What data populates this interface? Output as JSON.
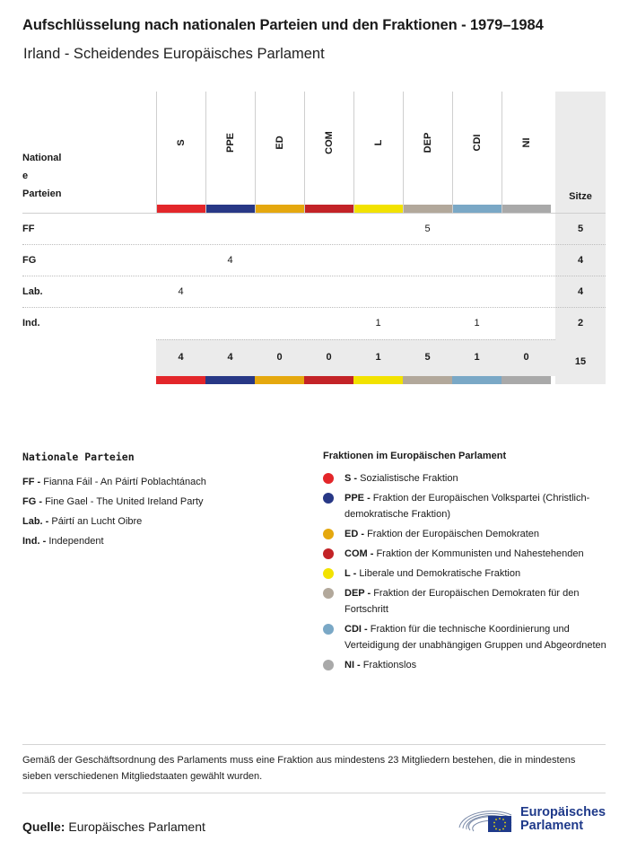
{
  "title": "Aufschlüsselung nach nationalen Parteien und den Fraktionen - 1979–1984",
  "subtitle": "Irland - Scheidendes Europäisches Parlament",
  "table": {
    "row_header_lines": [
      "National",
      "e",
      "Parteien"
    ],
    "seats_header": "Sitze",
    "groups": [
      {
        "code": "S",
        "color": "#e3262a"
      },
      {
        "code": "PPE",
        "color": "#283886"
      },
      {
        "code": "ED",
        "color": "#e5a80e"
      },
      {
        "code": "COM",
        "color": "#c32327"
      },
      {
        "code": "L",
        "color": "#f2e200"
      },
      {
        "code": "DEP",
        "color": "#b2a89b"
      },
      {
        "code": "CDI",
        "color": "#7aa8c6"
      },
      {
        "code": "NI",
        "color": "#a9a9a9"
      }
    ],
    "rows": [
      {
        "party": "FF",
        "values": [
          "",
          "",
          "",
          "",
          "",
          "5",
          "",
          ""
        ],
        "total": "5"
      },
      {
        "party": "FG",
        "values": [
          "",
          "4",
          "",
          "",
          "",
          "",
          "",
          ""
        ],
        "total": "4"
      },
      {
        "party": "Lab.",
        "values": [
          "4",
          "",
          "",
          "",
          "",
          "",
          "",
          ""
        ],
        "total": "4"
      },
      {
        "party": "Ind.",
        "values": [
          "",
          "",
          "",
          "",
          "1",
          "",
          "1",
          ""
        ],
        "total": "2"
      }
    ],
    "totals": [
      "4",
      "4",
      "0",
      "0",
      "1",
      "5",
      "1",
      "0"
    ],
    "grand_total": "15"
  },
  "national_legend": {
    "title": "Nationale Parteien",
    "items": [
      {
        "abbr": "FF -",
        "name": "Fianna Fáil - An Páirtí Poblachtánach"
      },
      {
        "abbr": "FG -",
        "name": "Fine Gael - The United Ireland Party"
      },
      {
        "abbr": "Lab. -",
        "name": "Páirtí an Lucht Oibre"
      },
      {
        "abbr": "Ind. -",
        "name": "Independent"
      }
    ]
  },
  "group_legend": {
    "title": "Fraktionen im Europäischen Parlament",
    "items": [
      {
        "abbr": "S -",
        "name": "Sozialistische Fraktion",
        "color": "#e3262a"
      },
      {
        "abbr": "PPE -",
        "name": "Fraktion der Europäischen Volkspartei (Christlich-demokratische Fraktion)",
        "color": "#283886"
      },
      {
        "abbr": "ED -",
        "name": "Fraktion der Europäischen Demokraten",
        "color": "#e5a80e"
      },
      {
        "abbr": "COM -",
        "name": "Fraktion der Kommunisten und Nahestehenden",
        "color": "#c32327"
      },
      {
        "abbr": "L -",
        "name": "Liberale und Demokratische Fraktion",
        "color": "#f2e200"
      },
      {
        "abbr": "DEP -",
        "name": "Fraktion der Europäischen Demokraten für den Fortschritt",
        "color": "#b2a89b"
      },
      {
        "abbr": "CDI -",
        "name": "Fraktion für die technische Koordinierung und Verteidigung der unabhängigen Gruppen und Abgeordneten",
        "color": "#7aa8c6"
      },
      {
        "abbr": "NI -",
        "name": "Fraktionslos",
        "color": "#a9a9a9"
      }
    ]
  },
  "note": "Gemäß der Geschäftsordnung des Parlaments muss eine Fraktion aus mindestens 23 Mitgliedern bestehen, die in mindestens sieben verschiedenen Mitgliedstaaten gewählt wurden.",
  "source": {
    "label": "Quelle:",
    "value": "Europäisches Parlament"
  },
  "logo": {
    "line1": "Europäisches",
    "line2": "Parlament",
    "color": "#1f3a8a"
  }
}
